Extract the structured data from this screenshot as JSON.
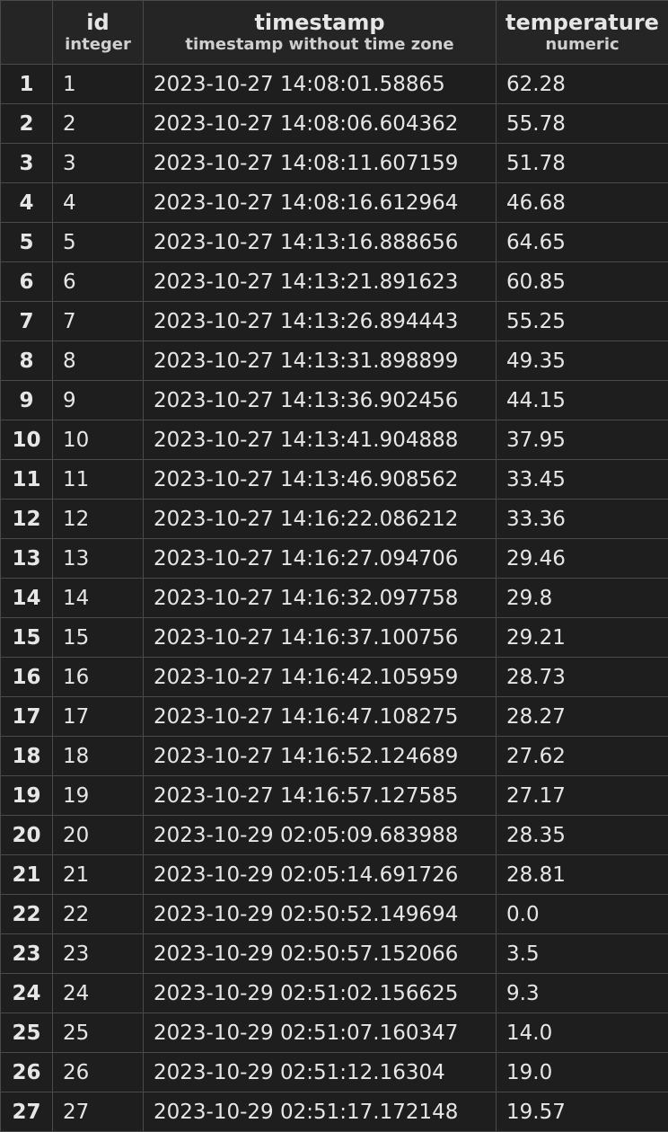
{
  "columns": [
    {
      "name": "id",
      "type": "integer"
    },
    {
      "name": "timestamp",
      "type": "timestamp without time zone"
    },
    {
      "name": "temperature",
      "type": "numeric"
    }
  ],
  "rows": [
    {
      "num": "1",
      "id": "1",
      "timestamp": "2023-10-27 14:08:01.58865",
      "temperature": "62.28"
    },
    {
      "num": "2",
      "id": "2",
      "timestamp": "2023-10-27 14:08:06.604362",
      "temperature": "55.78"
    },
    {
      "num": "3",
      "id": "3",
      "timestamp": "2023-10-27 14:08:11.607159",
      "temperature": "51.78"
    },
    {
      "num": "4",
      "id": "4",
      "timestamp": "2023-10-27 14:08:16.612964",
      "temperature": "46.68"
    },
    {
      "num": "5",
      "id": "5",
      "timestamp": "2023-10-27 14:13:16.888656",
      "temperature": "64.65"
    },
    {
      "num": "6",
      "id": "6",
      "timestamp": "2023-10-27 14:13:21.891623",
      "temperature": "60.85"
    },
    {
      "num": "7",
      "id": "7",
      "timestamp": "2023-10-27 14:13:26.894443",
      "temperature": "55.25"
    },
    {
      "num": "8",
      "id": "8",
      "timestamp": "2023-10-27 14:13:31.898899",
      "temperature": "49.35"
    },
    {
      "num": "9",
      "id": "9",
      "timestamp": "2023-10-27 14:13:36.902456",
      "temperature": "44.15"
    },
    {
      "num": "10",
      "id": "10",
      "timestamp": "2023-10-27 14:13:41.904888",
      "temperature": "37.95"
    },
    {
      "num": "11",
      "id": "11",
      "timestamp": "2023-10-27 14:13:46.908562",
      "temperature": "33.45"
    },
    {
      "num": "12",
      "id": "12",
      "timestamp": "2023-10-27 14:16:22.086212",
      "temperature": "33.36"
    },
    {
      "num": "13",
      "id": "13",
      "timestamp": "2023-10-27 14:16:27.094706",
      "temperature": "29.46"
    },
    {
      "num": "14",
      "id": "14",
      "timestamp": "2023-10-27 14:16:32.097758",
      "temperature": "29.8"
    },
    {
      "num": "15",
      "id": "15",
      "timestamp": "2023-10-27 14:16:37.100756",
      "temperature": "29.21"
    },
    {
      "num": "16",
      "id": "16",
      "timestamp": "2023-10-27 14:16:42.105959",
      "temperature": "28.73"
    },
    {
      "num": "17",
      "id": "17",
      "timestamp": "2023-10-27 14:16:47.108275",
      "temperature": "28.27"
    },
    {
      "num": "18",
      "id": "18",
      "timestamp": "2023-10-27 14:16:52.124689",
      "temperature": "27.62"
    },
    {
      "num": "19",
      "id": "19",
      "timestamp": "2023-10-27 14:16:57.127585",
      "temperature": "27.17"
    },
    {
      "num": "20",
      "id": "20",
      "timestamp": "2023-10-29 02:05:09.683988",
      "temperature": "28.35"
    },
    {
      "num": "21",
      "id": "21",
      "timestamp": "2023-10-29 02:05:14.691726",
      "temperature": "28.81"
    },
    {
      "num": "22",
      "id": "22",
      "timestamp": "2023-10-29 02:50:52.149694",
      "temperature": "0.0"
    },
    {
      "num": "23",
      "id": "23",
      "timestamp": "2023-10-29 02:50:57.152066",
      "temperature": "3.5"
    },
    {
      "num": "24",
      "id": "24",
      "timestamp": "2023-10-29 02:51:02.156625",
      "temperature": "9.3"
    },
    {
      "num": "25",
      "id": "25",
      "timestamp": "2023-10-29 02:51:07.160347",
      "temperature": "14.0"
    },
    {
      "num": "26",
      "id": "26",
      "timestamp": "2023-10-29 02:51:12.16304",
      "temperature": "19.0"
    },
    {
      "num": "27",
      "id": "27",
      "timestamp": "2023-10-29 02:51:17.172148",
      "temperature": "19.57"
    }
  ]
}
